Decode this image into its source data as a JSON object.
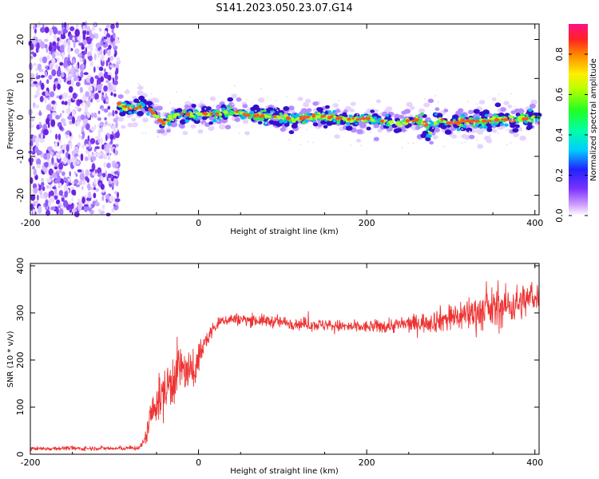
{
  "title": "S141.2023.050.23.07.G14",
  "chart_data": [
    {
      "type": "heatmap",
      "xlabel": "Height of straight line (km)",
      "ylabel": "Frequency (Hz)",
      "xlim": [
        -200,
        405
      ],
      "ylim": [
        -25,
        24
      ],
      "x_ticks": [
        -200,
        0,
        200,
        400
      ],
      "y_ticks": [
        -20,
        -10,
        0,
        10,
        20
      ],
      "colorbar": {
        "label": "Normalized spectral amplitude",
        "range": [
          0,
          0.95
        ],
        "ticks": [
          0.0,
          0.2,
          0.4,
          0.6,
          0.8
        ]
      },
      "noise_region_x": [
        -200,
        -95
      ],
      "ridge_centerline": {
        "x": [
          -95,
          -85,
          -75,
          -65,
          -55,
          -45,
          -40,
          -30,
          -20,
          0,
          20,
          40,
          60,
          80,
          100,
          120,
          140,
          160,
          180,
          200,
          220,
          240,
          260,
          270,
          275,
          280,
          290,
          300,
          320,
          340,
          360,
          380,
          400,
          405
        ],
        "y": [
          3.5,
          2.5,
          2.5,
          3,
          1.5,
          -1,
          -1.5,
          0.5,
          0.8,
          0.8,
          0.8,
          1.5,
          0.5,
          0.5,
          0,
          -0.5,
          0.5,
          0,
          -0.5,
          -0.5,
          -1,
          -1.5,
          -0.5,
          -1.5,
          -4,
          -1.5,
          -0.5,
          -1.5,
          -1,
          -1,
          -0.5,
          -0.5,
          0,
          0
        ]
      }
    },
    {
      "type": "line",
      "xlabel": "Height of straight line (km)",
      "ylabel": "SNR (10 * v/v)",
      "xlim": [
        -200,
        405
      ],
      "ylim": [
        0,
        405
      ],
      "x_ticks": [
        -200,
        0,
        200,
        400
      ],
      "y_ticks": [
        0,
        100,
        200,
        300,
        400
      ],
      "series": [
        {
          "color": "#ee3333",
          "x": [
            -200,
            -180,
            -160,
            -140,
            -120,
            -100,
            -80,
            -70,
            -65,
            -60,
            -55,
            -50,
            -45,
            -40,
            -35,
            -30,
            -25,
            -20,
            -15,
            -10,
            -5,
            0,
            5,
            10,
            15,
            20,
            25,
            30,
            40,
            60,
            80,
            100,
            120,
            140,
            160,
            180,
            200,
            220,
            240,
            260,
            280,
            300,
            320,
            340,
            360,
            380,
            400,
            405
          ],
          "values": [
            12,
            12,
            13,
            12,
            13,
            12,
            13,
            14,
            25,
            55,
            90,
            110,
            120,
            130,
            150,
            165,
            175,
            185,
            175,
            165,
            180,
            205,
            225,
            245,
            260,
            270,
            280,
            285,
            287,
            285,
            283,
            280,
            277,
            275,
            273,
            270,
            270,
            272,
            275,
            278,
            283,
            290,
            298,
            305,
            312,
            320,
            335,
            340
          ],
          "spread": [
            4,
            4,
            4,
            4,
            4,
            4,
            4,
            5,
            12,
            25,
            35,
            40,
            45,
            50,
            55,
            60,
            55,
            50,
            45,
            40,
            35,
            30,
            25,
            18,
            15,
            12,
            12,
            12,
            12,
            12,
            12,
            12,
            12,
            12,
            12,
            12,
            12,
            14,
            16,
            18,
            22,
            28,
            34,
            40,
            40,
            36,
            30,
            28
          ]
        }
      ]
    }
  ]
}
